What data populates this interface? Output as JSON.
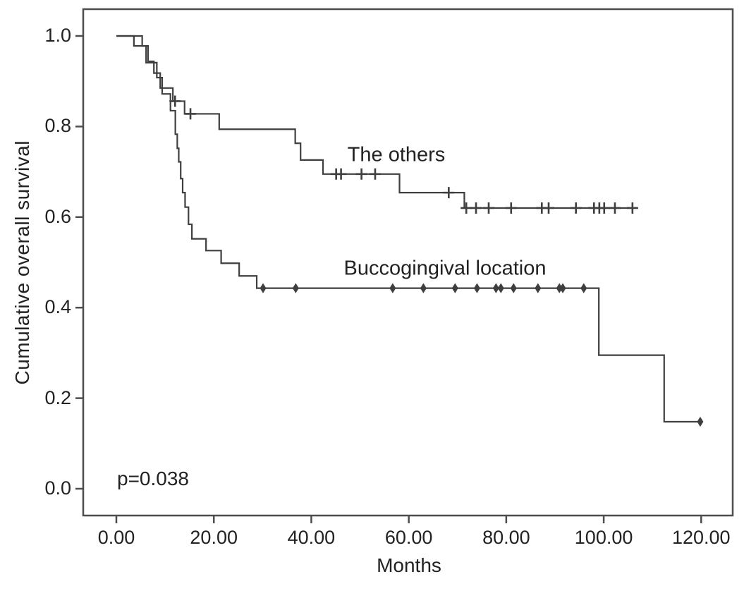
{
  "chart_data": {
    "type": "line",
    "chart_kind": "kaplan-meier-step",
    "title": "",
    "xlabel": "Months",
    "ylabel": "Cumulative overall survival",
    "xlim": [
      0,
      126.5
    ],
    "ylim": [
      -0.06,
      1.06
    ],
    "grid": false,
    "legend_position": "inline-labels-on-plot",
    "x_ticks": [
      {
        "value": 0,
        "label": "0.00"
      },
      {
        "value": 20,
        "label": "20.00"
      },
      {
        "value": 40,
        "label": "40.00"
      },
      {
        "value": 60,
        "label": "60.00"
      },
      {
        "value": 80,
        "label": "80.00"
      },
      {
        "value": 100,
        "label": "100.00"
      },
      {
        "value": 120,
        "label": "120.00"
      }
    ],
    "y_ticks": [
      {
        "value": 0.0,
        "label": "0.0"
      },
      {
        "value": 0.2,
        "label": "0.2"
      },
      {
        "value": 0.4,
        "label": "0.4"
      },
      {
        "value": 0.6,
        "label": "0.6"
      },
      {
        "value": 0.8,
        "label": "0.8"
      },
      {
        "value": 1.0,
        "label": "1.0"
      }
    ],
    "annotations": {
      "p_value": "p=0.038"
    },
    "line_color": "#3f3f3f",
    "spine_color": "#4d4d4d",
    "series": [
      {
        "name": "The others",
        "censor_marker": "plus",
        "steps": [
          [
            0,
            1.0
          ],
          [
            5.3,
            0.978
          ],
          [
            6.5,
            0.944
          ],
          [
            7.7,
            0.918
          ],
          [
            9.0,
            0.885
          ],
          [
            11.6,
            0.856
          ],
          [
            14.0,
            0.828
          ],
          [
            21.1,
            0.794
          ],
          [
            36.7,
            0.763
          ],
          [
            37.8,
            0.726
          ],
          [
            42.4,
            0.695
          ],
          [
            58.1,
            0.654
          ],
          [
            71.4,
            0.62
          ]
        ],
        "end_time": 106.8,
        "censors": [
          [
            12.05,
            0.856
          ],
          [
            15.2,
            0.828
          ],
          [
            45.1,
            0.695
          ],
          [
            46.1,
            0.695
          ],
          [
            50.3,
            0.695
          ],
          [
            53.1,
            0.695
          ],
          [
            68.2,
            0.654
          ],
          [
            71.8,
            0.62
          ],
          [
            73.8,
            0.62
          ],
          [
            76.4,
            0.62
          ],
          [
            81.0,
            0.62
          ],
          [
            87.3,
            0.62
          ],
          [
            88.7,
            0.62
          ],
          [
            94.3,
            0.62
          ],
          [
            98.0,
            0.62
          ],
          [
            99.1,
            0.62
          ],
          [
            100.1,
            0.62
          ],
          [
            102.3,
            0.62
          ],
          [
            105.9,
            0.62
          ]
        ]
      },
      {
        "name": "Buccogingival location",
        "censor_marker": "diamond",
        "steps": [
          [
            0,
            1.0
          ],
          [
            3.6,
            0.978
          ],
          [
            6.1,
            0.941
          ],
          [
            8.3,
            0.908
          ],
          [
            9.4,
            0.872
          ],
          [
            11.1,
            0.835
          ],
          [
            12.1,
            0.783
          ],
          [
            12.5,
            0.752
          ],
          [
            12.8,
            0.722
          ],
          [
            13.2,
            0.685
          ],
          [
            13.6,
            0.654
          ],
          [
            14.1,
            0.622
          ],
          [
            14.8,
            0.584
          ],
          [
            15.5,
            0.552
          ],
          [
            18.4,
            0.526
          ],
          [
            21.5,
            0.498
          ],
          [
            25.2,
            0.47
          ],
          [
            28.8,
            0.443
          ],
          [
            99.0,
            0.295
          ],
          [
            112.4,
            0.148
          ]
        ],
        "end_time": 119.8,
        "censors": [
          [
            30.1,
            0.443
          ],
          [
            36.8,
            0.443
          ],
          [
            56.7,
            0.443
          ],
          [
            63.0,
            0.443
          ],
          [
            69.5,
            0.443
          ],
          [
            74.0,
            0.443
          ],
          [
            77.9,
            0.443
          ],
          [
            78.9,
            0.443
          ],
          [
            81.5,
            0.443
          ],
          [
            86.5,
            0.443
          ],
          [
            90.9,
            0.443
          ],
          [
            91.6,
            0.443
          ],
          [
            95.9,
            0.443
          ],
          [
            119.8,
            0.148
          ]
        ]
      }
    ]
  }
}
